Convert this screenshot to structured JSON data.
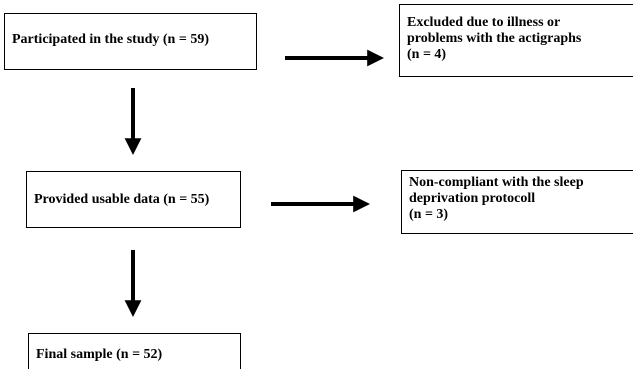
{
  "flowchart": {
    "boxes": {
      "participated": {
        "text": "Participated in the study (n = 59)"
      },
      "excluded": {
        "lines": [
          "Excluded due to illness or",
          "problems with the actigraphs",
          "(n = 4)"
        ]
      },
      "usable": {
        "text": "Provided usable data (n = 55)"
      },
      "noncompliant": {
        "lines": [
          "Non-compliant with the sleep",
          "deprivation protocoll",
          "(n = 3)"
        ]
      },
      "final": {
        "text": "Final sample (n = 52)"
      }
    },
    "colors": {
      "stroke": "#000000",
      "background": "#ffffff",
      "text": "#000000"
    }
  }
}
